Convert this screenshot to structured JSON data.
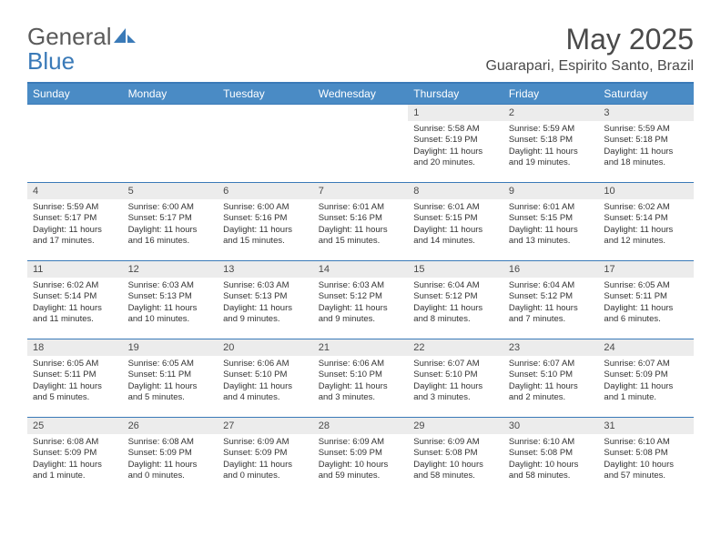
{
  "brand": {
    "part1": "General",
    "part2": "Blue"
  },
  "title": "May 2025",
  "location": "Guarapari, Espirito Santo, Brazil",
  "colors": {
    "header_bg": "#4a8bc5",
    "border": "#3a7ab8",
    "daynum_bg": "#ececec",
    "text": "#333333"
  },
  "weekdays": [
    "Sunday",
    "Monday",
    "Tuesday",
    "Wednesday",
    "Thursday",
    "Friday",
    "Saturday"
  ],
  "weeks": [
    [
      {
        "n": "",
        "sr": "",
        "ss": "",
        "dl1": "",
        "dl2": ""
      },
      {
        "n": "",
        "sr": "",
        "ss": "",
        "dl1": "",
        "dl2": ""
      },
      {
        "n": "",
        "sr": "",
        "ss": "",
        "dl1": "",
        "dl2": ""
      },
      {
        "n": "",
        "sr": "",
        "ss": "",
        "dl1": "",
        "dl2": ""
      },
      {
        "n": "1",
        "sr": "Sunrise: 5:58 AM",
        "ss": "Sunset: 5:19 PM",
        "dl1": "Daylight: 11 hours",
        "dl2": "and 20 minutes."
      },
      {
        "n": "2",
        "sr": "Sunrise: 5:59 AM",
        "ss": "Sunset: 5:18 PM",
        "dl1": "Daylight: 11 hours",
        "dl2": "and 19 minutes."
      },
      {
        "n": "3",
        "sr": "Sunrise: 5:59 AM",
        "ss": "Sunset: 5:18 PM",
        "dl1": "Daylight: 11 hours",
        "dl2": "and 18 minutes."
      }
    ],
    [
      {
        "n": "4",
        "sr": "Sunrise: 5:59 AM",
        "ss": "Sunset: 5:17 PM",
        "dl1": "Daylight: 11 hours",
        "dl2": "and 17 minutes."
      },
      {
        "n": "5",
        "sr": "Sunrise: 6:00 AM",
        "ss": "Sunset: 5:17 PM",
        "dl1": "Daylight: 11 hours",
        "dl2": "and 16 minutes."
      },
      {
        "n": "6",
        "sr": "Sunrise: 6:00 AM",
        "ss": "Sunset: 5:16 PM",
        "dl1": "Daylight: 11 hours",
        "dl2": "and 15 minutes."
      },
      {
        "n": "7",
        "sr": "Sunrise: 6:01 AM",
        "ss": "Sunset: 5:16 PM",
        "dl1": "Daylight: 11 hours",
        "dl2": "and 15 minutes."
      },
      {
        "n": "8",
        "sr": "Sunrise: 6:01 AM",
        "ss": "Sunset: 5:15 PM",
        "dl1": "Daylight: 11 hours",
        "dl2": "and 14 minutes."
      },
      {
        "n": "9",
        "sr": "Sunrise: 6:01 AM",
        "ss": "Sunset: 5:15 PM",
        "dl1": "Daylight: 11 hours",
        "dl2": "and 13 minutes."
      },
      {
        "n": "10",
        "sr": "Sunrise: 6:02 AM",
        "ss": "Sunset: 5:14 PM",
        "dl1": "Daylight: 11 hours",
        "dl2": "and 12 minutes."
      }
    ],
    [
      {
        "n": "11",
        "sr": "Sunrise: 6:02 AM",
        "ss": "Sunset: 5:14 PM",
        "dl1": "Daylight: 11 hours",
        "dl2": "and 11 minutes."
      },
      {
        "n": "12",
        "sr": "Sunrise: 6:03 AM",
        "ss": "Sunset: 5:13 PM",
        "dl1": "Daylight: 11 hours",
        "dl2": "and 10 minutes."
      },
      {
        "n": "13",
        "sr": "Sunrise: 6:03 AM",
        "ss": "Sunset: 5:13 PM",
        "dl1": "Daylight: 11 hours",
        "dl2": "and 9 minutes."
      },
      {
        "n": "14",
        "sr": "Sunrise: 6:03 AM",
        "ss": "Sunset: 5:12 PM",
        "dl1": "Daylight: 11 hours",
        "dl2": "and 9 minutes."
      },
      {
        "n": "15",
        "sr": "Sunrise: 6:04 AM",
        "ss": "Sunset: 5:12 PM",
        "dl1": "Daylight: 11 hours",
        "dl2": "and 8 minutes."
      },
      {
        "n": "16",
        "sr": "Sunrise: 6:04 AM",
        "ss": "Sunset: 5:12 PM",
        "dl1": "Daylight: 11 hours",
        "dl2": "and 7 minutes."
      },
      {
        "n": "17",
        "sr": "Sunrise: 6:05 AM",
        "ss": "Sunset: 5:11 PM",
        "dl1": "Daylight: 11 hours",
        "dl2": "and 6 minutes."
      }
    ],
    [
      {
        "n": "18",
        "sr": "Sunrise: 6:05 AM",
        "ss": "Sunset: 5:11 PM",
        "dl1": "Daylight: 11 hours",
        "dl2": "and 5 minutes."
      },
      {
        "n": "19",
        "sr": "Sunrise: 6:05 AM",
        "ss": "Sunset: 5:11 PM",
        "dl1": "Daylight: 11 hours",
        "dl2": "and 5 minutes."
      },
      {
        "n": "20",
        "sr": "Sunrise: 6:06 AM",
        "ss": "Sunset: 5:10 PM",
        "dl1": "Daylight: 11 hours",
        "dl2": "and 4 minutes."
      },
      {
        "n": "21",
        "sr": "Sunrise: 6:06 AM",
        "ss": "Sunset: 5:10 PM",
        "dl1": "Daylight: 11 hours",
        "dl2": "and 3 minutes."
      },
      {
        "n": "22",
        "sr": "Sunrise: 6:07 AM",
        "ss": "Sunset: 5:10 PM",
        "dl1": "Daylight: 11 hours",
        "dl2": "and 3 minutes."
      },
      {
        "n": "23",
        "sr": "Sunrise: 6:07 AM",
        "ss": "Sunset: 5:10 PM",
        "dl1": "Daylight: 11 hours",
        "dl2": "and 2 minutes."
      },
      {
        "n": "24",
        "sr": "Sunrise: 6:07 AM",
        "ss": "Sunset: 5:09 PM",
        "dl1": "Daylight: 11 hours",
        "dl2": "and 1 minute."
      }
    ],
    [
      {
        "n": "25",
        "sr": "Sunrise: 6:08 AM",
        "ss": "Sunset: 5:09 PM",
        "dl1": "Daylight: 11 hours",
        "dl2": "and 1 minute."
      },
      {
        "n": "26",
        "sr": "Sunrise: 6:08 AM",
        "ss": "Sunset: 5:09 PM",
        "dl1": "Daylight: 11 hours",
        "dl2": "and 0 minutes."
      },
      {
        "n": "27",
        "sr": "Sunrise: 6:09 AM",
        "ss": "Sunset: 5:09 PM",
        "dl1": "Daylight: 11 hours",
        "dl2": "and 0 minutes."
      },
      {
        "n": "28",
        "sr": "Sunrise: 6:09 AM",
        "ss": "Sunset: 5:09 PM",
        "dl1": "Daylight: 10 hours",
        "dl2": "and 59 minutes."
      },
      {
        "n": "29",
        "sr": "Sunrise: 6:09 AM",
        "ss": "Sunset: 5:08 PM",
        "dl1": "Daylight: 10 hours",
        "dl2": "and 58 minutes."
      },
      {
        "n": "30",
        "sr": "Sunrise: 6:10 AM",
        "ss": "Sunset: 5:08 PM",
        "dl1": "Daylight: 10 hours",
        "dl2": "and 58 minutes."
      },
      {
        "n": "31",
        "sr": "Sunrise: 6:10 AM",
        "ss": "Sunset: 5:08 PM",
        "dl1": "Daylight: 10 hours",
        "dl2": "and 57 minutes."
      }
    ]
  ]
}
